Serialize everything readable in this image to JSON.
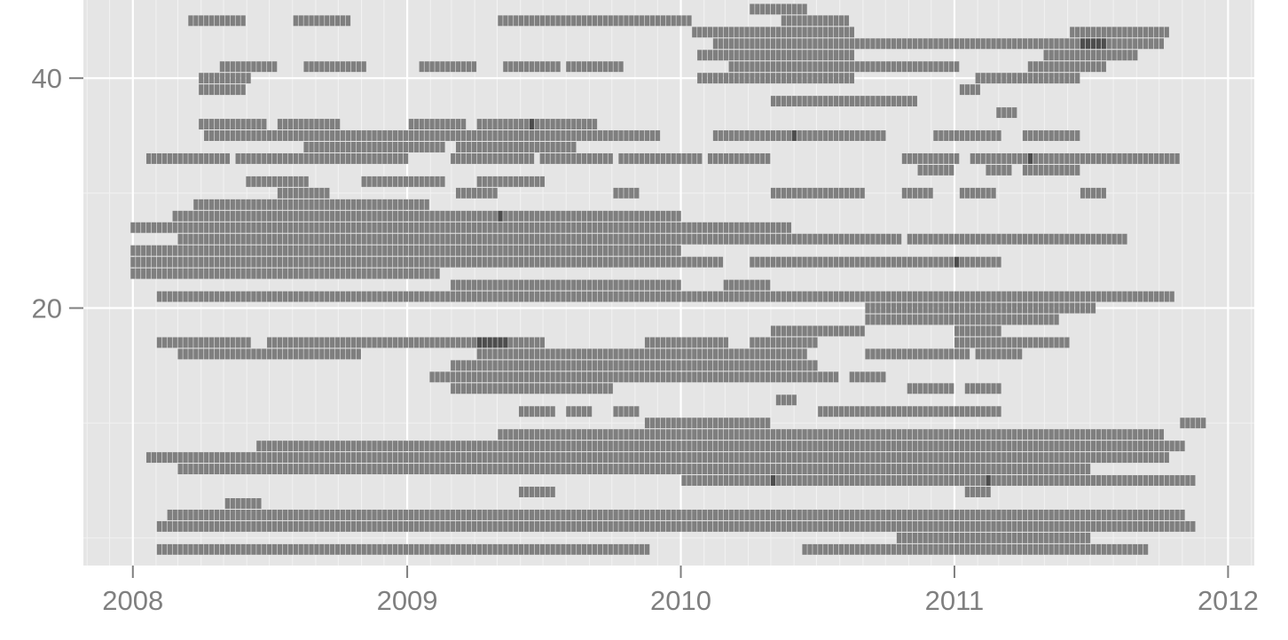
{
  "colors": {
    "panel_background": "#e5e5e5",
    "grid_major": "#ffffff",
    "grid_minor": "#f2f2f2",
    "tile_fill": "#7f7f7f",
    "tile_fill_dark": "#4d4d4d",
    "tick_label": "#7f7f7f",
    "tick_mark": "#7f7f7f"
  },
  "chart_data": {
    "type": "heatmap",
    "title": "",
    "xlabel": "",
    "ylabel": "",
    "grid": true,
    "legend": "none",
    "xlim": [
      "2007-10-27",
      "2012-02-05"
    ],
    "ylim": [
      -2.4,
      46.8
    ],
    "x_ticks": [
      {
        "value": "2008-01-01",
        "label": "2008"
      },
      {
        "value": "2009-01-01",
        "label": "2009"
      },
      {
        "value": "2010-01-01",
        "label": "2010"
      },
      {
        "value": "2011-01-01",
        "label": "2011"
      },
      {
        "value": "2012-01-01",
        "label": "2012"
      }
    ],
    "y_ticks": [
      {
        "value": 20,
        "label": "20"
      },
      {
        "value": 40,
        "label": "40"
      }
    ],
    "row_height": 1,
    "dark_overlap_shade": "darker tile where runs overlap",
    "runs": [
      {
        "y": 46,
        "spans": [
          [
            "2010-04-01",
            "2010-06-15"
          ]
        ]
      },
      {
        "y": 45,
        "spans": [
          [
            "2008-03-15",
            "2008-05-28"
          ],
          [
            "2008-08-01",
            "2008-10-15"
          ],
          [
            "2009-05-01",
            "2010-01-10"
          ],
          [
            "2010-05-15",
            "2010-08-10"
          ]
        ]
      },
      {
        "y": 44,
        "spans": [
          [
            "2010-01-15",
            "2010-08-20"
          ],
          [
            "2011-06-01",
            "2011-10-10"
          ]
        ]
      },
      {
        "y": 43,
        "spans": [
          [
            "2010-02-10",
            "2010-08-31"
          ],
          [
            "2010-09-01",
            "2011-07-15"
          ],
          [
            "2011-06-15",
            "2011-10-01"
          ]
        ]
      },
      {
        "y": 42,
        "spans": [
          [
            "2010-01-25",
            "2010-08-20"
          ],
          [
            "2011-05-01",
            "2011-09-01"
          ]
        ]
      },
      {
        "y": 41,
        "spans": [
          [
            "2008-04-25",
            "2008-07-05"
          ],
          [
            "2008-08-15",
            "2008-11-01"
          ],
          [
            "2009-01-15",
            "2009-04-01"
          ],
          [
            "2009-05-10",
            "2009-07-25"
          ],
          [
            "2009-07-30",
            "2009-10-15"
          ],
          [
            "2010-03-05",
            "2011-01-01"
          ],
          [
            "2011-04-10",
            "2011-07-20"
          ]
        ]
      },
      {
        "y": 40,
        "spans": [
          [
            "2008-04-01",
            "2008-06-05"
          ],
          [
            "2010-01-20",
            "2010-08-15"
          ],
          [
            "2011-02-01",
            "2011-06-20"
          ]
        ]
      },
      {
        "y": 39,
        "spans": [
          [
            "2008-03-30",
            "2008-06-01"
          ],
          [
            "2011-01-10",
            "2011-02-05"
          ]
        ]
      },
      {
        "y": 38,
        "spans": [
          [
            "2010-05-01",
            "2010-11-10"
          ]
        ]
      },
      {
        "y": 37,
        "spans": [
          [
            "2011-02-25",
            "2011-03-20"
          ]
        ]
      },
      {
        "y": 36,
        "spans": [
          [
            "2008-04-01",
            "2008-07-01"
          ],
          [
            "2008-07-15",
            "2008-10-01"
          ],
          [
            "2009-01-01",
            "2009-03-15"
          ],
          [
            "2009-04-01",
            "2009-06-15"
          ],
          [
            "2009-06-15",
            "2009-09-10"
          ]
        ]
      },
      {
        "y": 35,
        "spans": [
          [
            "2008-04-05",
            "2009-12-01"
          ],
          [
            "2010-02-15",
            "2010-06-01"
          ],
          [
            "2010-06-01",
            "2010-10-01"
          ],
          [
            "2010-12-01",
            "2011-03-01"
          ],
          [
            "2011-04-01",
            "2011-06-15"
          ]
        ]
      },
      {
        "y": 34,
        "spans": [
          [
            "2008-08-15",
            "2009-02-15"
          ],
          [
            "2009-03-10",
            "2009-08-15"
          ]
        ]
      },
      {
        "y": 33,
        "spans": [
          [
            "2008-01-20",
            "2008-05-10"
          ],
          [
            "2008-05-15",
            "2009-01-01"
          ],
          [
            "2009-03-01",
            "2009-06-15"
          ],
          [
            "2009-06-25",
            "2009-10-01"
          ],
          [
            "2009-10-10",
            "2010-01-25"
          ],
          [
            "2010-02-05",
            "2010-04-25"
          ],
          [
            "2010-10-20",
            "2011-01-01"
          ],
          [
            "2011-01-20",
            "2011-04-10"
          ],
          [
            "2011-04-10",
            "2011-07-15"
          ],
          [
            "2011-07-15",
            "2011-10-25"
          ]
        ]
      },
      {
        "y": 32,
        "spans": [
          [
            "2010-11-15",
            "2011-01-01"
          ],
          [
            "2011-02-15",
            "2011-03-20"
          ],
          [
            "2011-04-01",
            "2011-06-15"
          ]
        ]
      },
      {
        "y": 31,
        "spans": [
          [
            "2008-06-01",
            "2008-08-20"
          ],
          [
            "2008-11-01",
            "2009-02-20"
          ],
          [
            "2009-04-01",
            "2009-07-01"
          ]
        ]
      },
      {
        "y": 30,
        "spans": [
          [
            "2008-07-10",
            "2008-09-15"
          ],
          [
            "2009-03-10",
            "2009-05-01"
          ],
          [
            "2009-10-01",
            "2009-11-01"
          ],
          [
            "2010-05-01",
            "2010-09-01"
          ],
          [
            "2010-10-20",
            "2010-12-01"
          ],
          [
            "2011-01-10",
            "2011-02-25"
          ],
          [
            "2011-06-15",
            "2011-07-20"
          ]
        ]
      },
      {
        "y": 29,
        "spans": [
          [
            "2008-03-20",
            "2009-01-25"
          ]
        ]
      },
      {
        "y": 28,
        "spans": [
          [
            "2008-02-20",
            "2009-05-01"
          ],
          [
            "2009-05-01",
            "2010-01-01"
          ]
        ]
      },
      {
        "y": 27,
        "spans": [
          [
            "2008-01-01",
            "2010-06-01"
          ]
        ]
      },
      {
        "y": 26,
        "spans": [
          [
            "2008-03-01",
            "2010-10-20"
          ],
          [
            "2010-11-01",
            "2011-04-15"
          ],
          [
            "2011-04-15",
            "2011-08-15"
          ]
        ]
      },
      {
        "y": 25,
        "spans": [
          [
            "2008-01-01",
            "2010-01-01"
          ]
        ]
      },
      {
        "y": 24,
        "spans": [
          [
            "2008-01-01",
            "2010-03-01"
          ],
          [
            "2010-04-01",
            "2011-01-01"
          ],
          [
            "2011-01-01",
            "2011-03-01"
          ]
        ]
      },
      {
        "y": 23,
        "spans": [
          [
            "2008-01-01",
            "2009-02-15"
          ]
        ]
      },
      {
        "y": 22,
        "spans": [
          [
            "2009-03-01",
            "2010-01-01"
          ],
          [
            "2010-03-01",
            "2010-05-01"
          ]
        ]
      },
      {
        "y": 21,
        "spans": [
          [
            "2008-02-01",
            "2011-10-15"
          ]
        ]
      },
      {
        "y": 20,
        "spans": [
          [
            "2010-09-01",
            "2011-07-01"
          ]
        ]
      },
      {
        "y": 19,
        "spans": [
          [
            "2010-09-01",
            "2011-05-15"
          ]
        ]
      },
      {
        "y": 18,
        "spans": [
          [
            "2010-05-01",
            "2010-09-01"
          ],
          [
            "2011-01-01",
            "2011-03-01"
          ]
        ]
      },
      {
        "y": 17,
        "spans": [
          [
            "2008-02-01",
            "2008-06-01"
          ],
          [
            "2008-07-01",
            "2009-05-15"
          ],
          [
            "2009-04-01",
            "2009-07-01"
          ],
          [
            "2009-11-15",
            "2010-03-01"
          ],
          [
            "2010-04-01",
            "2010-07-01"
          ],
          [
            "2011-01-01",
            "2011-06-01"
          ]
        ]
      },
      {
        "y": 16,
        "spans": [
          [
            "2008-03-01",
            "2008-11-01"
          ],
          [
            "2009-04-01",
            "2010-06-15"
          ],
          [
            "2010-09-01",
            "2011-01-15"
          ],
          [
            "2011-02-01",
            "2011-04-01"
          ]
        ]
      },
      {
        "y": 15,
        "spans": [
          [
            "2009-03-01",
            "2010-07-01"
          ]
        ]
      },
      {
        "y": 14,
        "spans": [
          [
            "2009-02-01",
            "2010-08-01"
          ],
          [
            "2010-08-15",
            "2010-10-01"
          ]
        ]
      },
      {
        "y": 13,
        "spans": [
          [
            "2009-03-01",
            "2009-10-01"
          ],
          [
            "2010-11-01",
            "2011-01-01"
          ],
          [
            "2011-01-15",
            "2011-03-01"
          ]
        ]
      },
      {
        "y": 12,
        "spans": [
          [
            "2010-05-10",
            "2010-06-01"
          ]
        ]
      },
      {
        "y": 11,
        "spans": [
          [
            "2009-06-01",
            "2009-07-15"
          ],
          [
            "2009-08-01",
            "2009-09-01"
          ],
          [
            "2009-10-01",
            "2009-11-01"
          ],
          [
            "2010-07-01",
            "2011-03-01"
          ]
        ]
      },
      {
        "y": 10,
        "spans": [
          [
            "2009-11-15",
            "2010-05-01"
          ],
          [
            "2011-11-01",
            "2011-11-30"
          ]
        ]
      },
      {
        "y": 9,
        "spans": [
          [
            "2009-05-01",
            "2011-10-01"
          ]
        ]
      },
      {
        "y": 8,
        "spans": [
          [
            "2008-06-15",
            "2011-11-01"
          ]
        ]
      },
      {
        "y": 7,
        "spans": [
          [
            "2008-01-20",
            "2011-07-15"
          ],
          [
            "2011-07-15",
            "2011-10-10"
          ]
        ]
      },
      {
        "y": 6,
        "spans": [
          [
            "2008-03-01",
            "2011-07-01"
          ]
        ]
      },
      {
        "y": 5,
        "spans": [
          [
            "2010-01-01",
            "2010-05-01"
          ],
          [
            "2010-05-01",
            "2011-02-15"
          ],
          [
            "2011-02-15",
            "2011-08-15"
          ],
          [
            "2011-08-15",
            "2011-11-15"
          ]
        ]
      },
      {
        "y": 4,
        "spans": [
          [
            "2009-06-01",
            "2009-07-15"
          ],
          [
            "2011-01-15",
            "2011-02-15"
          ]
        ]
      },
      {
        "y": 3,
        "spans": [
          [
            "2008-05-01",
            "2008-06-15"
          ]
        ]
      },
      {
        "y": 2,
        "spans": [
          [
            "2008-02-15",
            "2011-11-01"
          ]
        ]
      },
      {
        "y": 1,
        "spans": [
          [
            "2008-02-01",
            "2011-11-15"
          ]
        ]
      },
      {
        "y": 0,
        "spans": [
          [
            "2010-10-15",
            "2011-07-01"
          ]
        ]
      },
      {
        "y": -1,
        "spans": [
          [
            "2008-02-01",
            "2009-11-15"
          ],
          [
            "2010-06-15",
            "2011-09-15"
          ]
        ]
      }
    ]
  }
}
